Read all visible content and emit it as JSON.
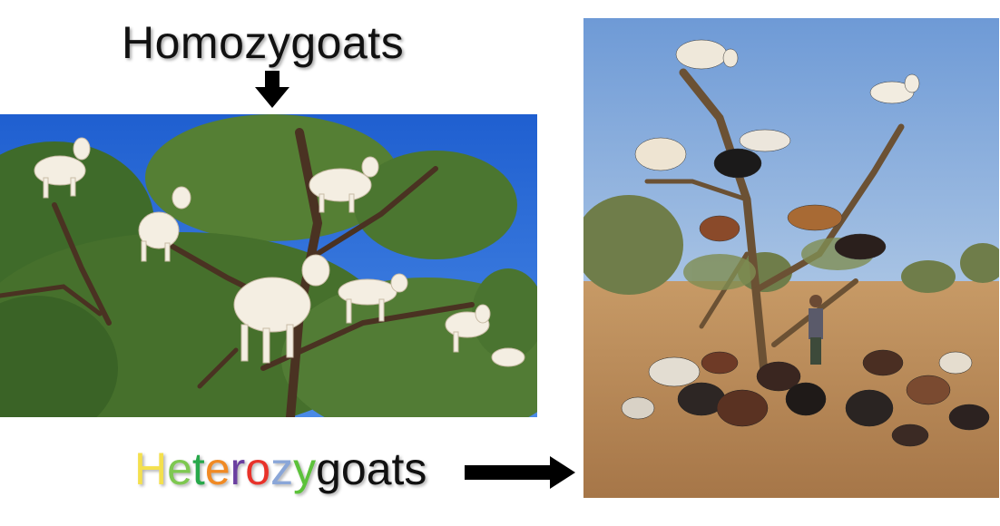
{
  "labels": {
    "top": "Homozygoats",
    "bottom_letters": [
      {
        "ch": "H",
        "color": "#f4e04d"
      },
      {
        "ch": "e",
        "color": "#7ec850"
      },
      {
        "ch": "t",
        "color": "#27a84a"
      },
      {
        "ch": "e",
        "color": "#f08a24"
      },
      {
        "ch": "r",
        "color": "#6a3fa0"
      },
      {
        "ch": "o",
        "color": "#e8322a"
      },
      {
        "ch": "z",
        "color": "#8aa6d8"
      },
      {
        "ch": "y",
        "color": "#5cc23a"
      },
      {
        "ch": "goats",
        "color": "#111111"
      }
    ]
  },
  "colors": {
    "sky_left": "#2f6fd8",
    "sky_right": "#7fa6d8",
    "foliage": "#4f7a32",
    "goat_white": "#f3ece0",
    "ground": "#b98a58"
  }
}
